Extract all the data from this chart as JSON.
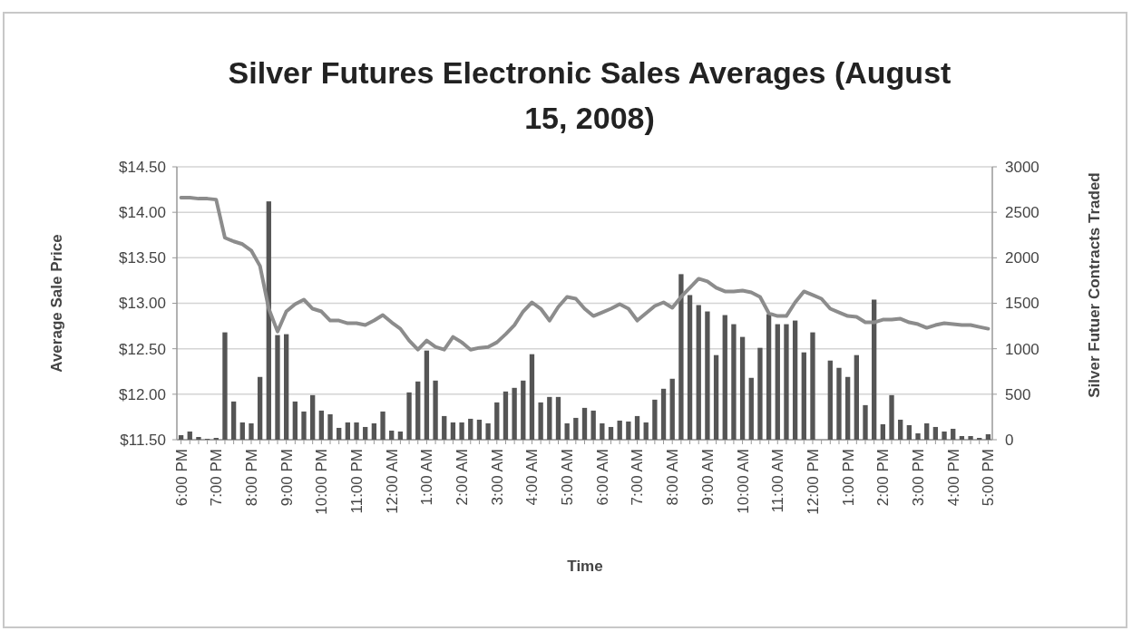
{
  "chart_data": {
    "type": "bar",
    "title": "Silver Futures Electronic Sales Averages (August 15, 2008)",
    "xlabel": "Time",
    "ylabel": "Average Sale Price",
    "y2label": "Silver Futuer Contracts Traded",
    "categories": [
      "6:00 PM",
      null,
      null,
      null,
      "7:00 PM",
      null,
      null,
      null,
      "8:00 PM",
      null,
      null,
      null,
      "9:00 PM",
      null,
      null,
      null,
      "10:00 PM",
      null,
      null,
      null,
      "11:00 PM",
      null,
      null,
      null,
      "12:00 AM",
      null,
      null,
      null,
      "1:00 AM",
      null,
      null,
      null,
      "2:00 AM",
      null,
      null,
      null,
      "3:00 AM",
      null,
      null,
      null,
      "4:00 AM",
      null,
      null,
      null,
      "5:00 AM",
      null,
      null,
      null,
      "6:00 AM",
      null,
      null,
      null,
      "7:00 AM",
      null,
      null,
      null,
      "8:00 AM",
      null,
      null,
      null,
      "9:00 AM",
      null,
      null,
      null,
      "10:00 AM",
      null,
      null,
      null,
      "11:00 AM",
      null,
      null,
      null,
      "12:00 PM",
      null,
      null,
      null,
      "1:00 PM",
      null,
      null,
      null,
      "2:00 PM",
      null,
      null,
      null,
      "3:00 PM",
      null,
      null,
      null,
      "4:00 PM",
      null,
      null,
      null,
      "5:00 PM"
    ],
    "series": [
      {
        "axis": "y2",
        "color": "#555555",
        "values": [
          50,
          90,
          30,
          10,
          20,
          1180,
          420,
          190,
          180,
          690,
          2620,
          1150,
          1160,
          420,
          310,
          490,
          320,
          280,
          130,
          190,
          190,
          140,
          180,
          310,
          100,
          90,
          520,
          640,
          980,
          650,
          260,
          190,
          190,
          230,
          220,
          180,
          410,
          530,
          570,
          650,
          940,
          410,
          470,
          470,
          180,
          240,
          350,
          320,
          180,
          140,
          210,
          200,
          260,
          190,
          440,
          560,
          670,
          1820,
          1590,
          1480,
          1410,
          930,
          1370,
          1270,
          1130,
          680,
          1010,
          1380,
          1270,
          1270,
          1310,
          960,
          1180,
          0,
          870,
          790,
          690,
          930,
          380,
          1540,
          170,
          490,
          220,
          160,
          70,
          180,
          140,
          90,
          120,
          40,
          40,
          20,
          60
        ]
      },
      {
        "type": "line",
        "axis": "y",
        "color": "#8c8c8c",
        "values": [
          14.16,
          14.16,
          14.15,
          14.15,
          14.14,
          13.72,
          13.68,
          13.65,
          13.58,
          13.41,
          12.94,
          12.69,
          12.91,
          12.99,
          13.04,
          12.94,
          12.91,
          12.81,
          12.81,
          12.78,
          12.78,
          12.76,
          12.81,
          12.87,
          12.79,
          12.72,
          12.59,
          12.49,
          12.59,
          12.52,
          12.49,
          12.63,
          12.57,
          12.49,
          12.51,
          12.52,
          12.57,
          12.66,
          12.76,
          12.91,
          13.01,
          12.94,
          12.81,
          12.96,
          13.07,
          13.05,
          12.94,
          12.86,
          12.9,
          12.94,
          12.99,
          12.94,
          12.81,
          12.89,
          12.97,
          13.01,
          12.95,
          13.07,
          13.17,
          13.27,
          13.24,
          13.17,
          13.13,
          13.13,
          13.14,
          13.12,
          13.07,
          12.89,
          12.86,
          12.86,
          13.01,
          13.13,
          13.09,
          13.05,
          12.94,
          12.9,
          12.86,
          12.85,
          12.79,
          12.79,
          12.82,
          12.82,
          12.83,
          12.79,
          12.77,
          12.73,
          12.76,
          12.78,
          12.77,
          12.76,
          12.76,
          12.74,
          12.72
        ]
      }
    ],
    "ylim": [
      11.5,
      14.5
    ],
    "yticks": [
      {
        "value": 11.5,
        "label": "$11.50"
      },
      {
        "value": 12,
        "label": "$12.00"
      },
      {
        "value": 12.5,
        "label": "$12.50"
      },
      {
        "value": 13,
        "label": "$13.00"
      },
      {
        "value": 13.5,
        "label": "$13.50"
      },
      {
        "value": 14,
        "label": "$14.00"
      },
      {
        "value": 14.5,
        "label": "$14.50"
      }
    ],
    "y2lim": [
      0,
      3000
    ],
    "y2ticks": [
      0,
      500,
      1000,
      1500,
      2000,
      2500,
      3000
    ],
    "grid": "y"
  }
}
